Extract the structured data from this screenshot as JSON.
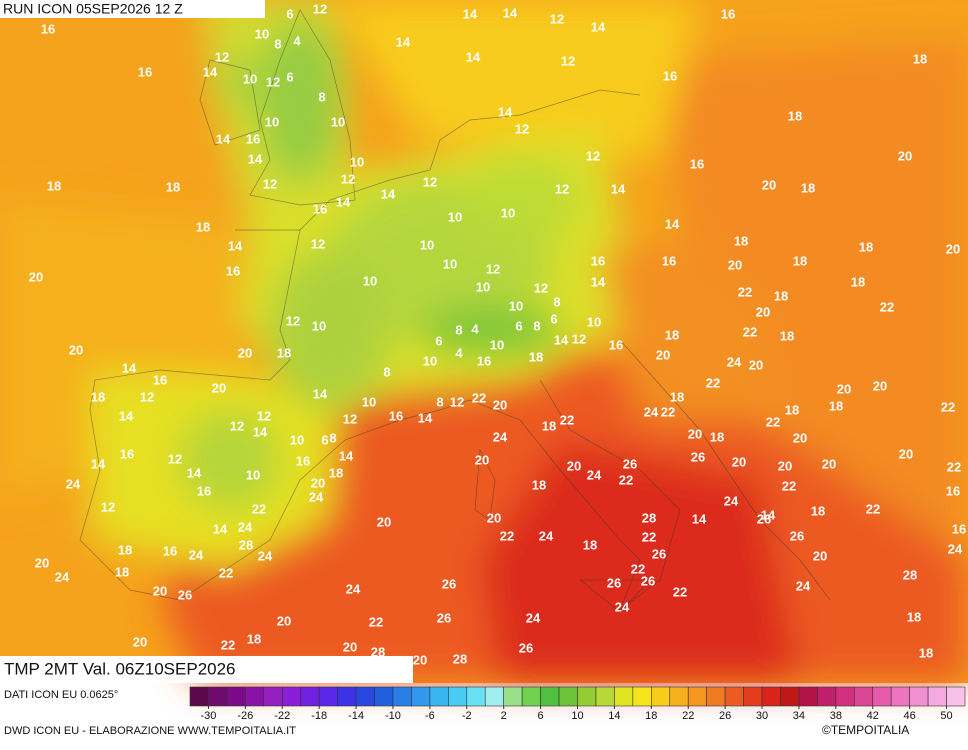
{
  "header": {
    "run": "RUN ICON 05SEP2026 12 Z"
  },
  "map": {
    "field": "TMP 2MT Val. 06Z10SEP2026",
    "labels": [
      16,
      6,
      12,
      10,
      4,
      8,
      14,
      14,
      12,
      14,
      16,
      14,
      12,
      14,
      16,
      10,
      12,
      6,
      8,
      14,
      12,
      16,
      18,
      10,
      14,
      16,
      10,
      14,
      12,
      18,
      14,
      10,
      12,
      16,
      20,
      18,
      18,
      12,
      12,
      12,
      14,
      12,
      14,
      20,
      18,
      16,
      14,
      10,
      10,
      18,
      14,
      12,
      10,
      14,
      18,
      16,
      10,
      12,
      16,
      16,
      20,
      18,
      18,
      20,
      20,
      10,
      10,
      14,
      18,
      22,
      18,
      12,
      10,
      8,
      12,
      10,
      22,
      20,
      4,
      8,
      6,
      8,
      6,
      10,
      22,
      18,
      18,
      20,
      20,
      18,
      6,
      4,
      10,
      18,
      14,
      12,
      16,
      20,
      24,
      20,
      10,
      16,
      8,
      14,
      16,
      22,
      20,
      18,
      12,
      14,
      10,
      8,
      12,
      22,
      20,
      18,
      24,
      22,
      20,
      20,
      18,
      18,
      22,
      14,
      12,
      12,
      14,
      12,
      16,
      14,
      22,
      18,
      10,
      6,
      8,
      24,
      20,
      18,
      22,
      20,
      14,
      16,
      12,
      14,
      16,
      18,
      20,
      26,
      20,
      20,
      20,
      20,
      22,
      26,
      20,
      20,
      10,
      14,
      16,
      24,
      18,
      24,
      22,
      22,
      16,
      12,
      22,
      22,
      24,
      24,
      18,
      14,
      14,
      24,
      20,
      20,
      28,
      14,
      26,
      24,
      22,
      22,
      26,
      16,
      28,
      18,
      18,
      16,
      24,
      24,
      26,
      24,
      20,
      20,
      18,
      22,
      24,
      22,
      20,
      26,
      24,
      26,
      26,
      26,
      24,
      28,
      22,
      24,
      20,
      22,
      26,
      24,
      18,
      20,
      22,
      18,
      20,
      28,
      26,
      18,
      20,
      28
    ]
  },
  "legend": {
    "source": "DATI ICON EU 0.0625°",
    "range": [
      -32,
      52
    ],
    "ticks": [
      -30,
      -26,
      -22,
      -18,
      -14,
      -10,
      -6,
      -2,
      2,
      6,
      10,
      14,
      18,
      22,
      26,
      30,
      34,
      38,
      42,
      46,
      50
    ],
    "colors": [
      "#5a0a4a",
      "#6e0a6e",
      "#7a0a8a",
      "#8a12a6",
      "#9420c0",
      "#8a1ed6",
      "#7020e0",
      "#5a28e6",
      "#3c32e6",
      "#2848e0",
      "#2060e0",
      "#2a7ee8",
      "#3098ee",
      "#38b4f0",
      "#48ccf4",
      "#6ae0f4",
      "#a0eef0",
      "#9ae08a",
      "#70d050",
      "#50c040",
      "#6cc23a",
      "#94cc34",
      "#b8d838",
      "#e0e420",
      "#f6e41a",
      "#f8cc1a",
      "#f6b01c",
      "#f49620",
      "#f07a22",
      "#ec5c22",
      "#e43c1c",
      "#d8241a",
      "#c01818",
      "#b01448",
      "#c0206a",
      "#d0307e",
      "#dc4696",
      "#e65aac",
      "#ee74c2",
      "#f28ed2",
      "#f6a8e0",
      "#f8c0ea"
    ]
  },
  "footer": {
    "credit": "DWD ICON EU - ELABORAZIONE WWW.TEMPOITALIA.IT",
    "brand": "©TEMPOITALIA"
  }
}
